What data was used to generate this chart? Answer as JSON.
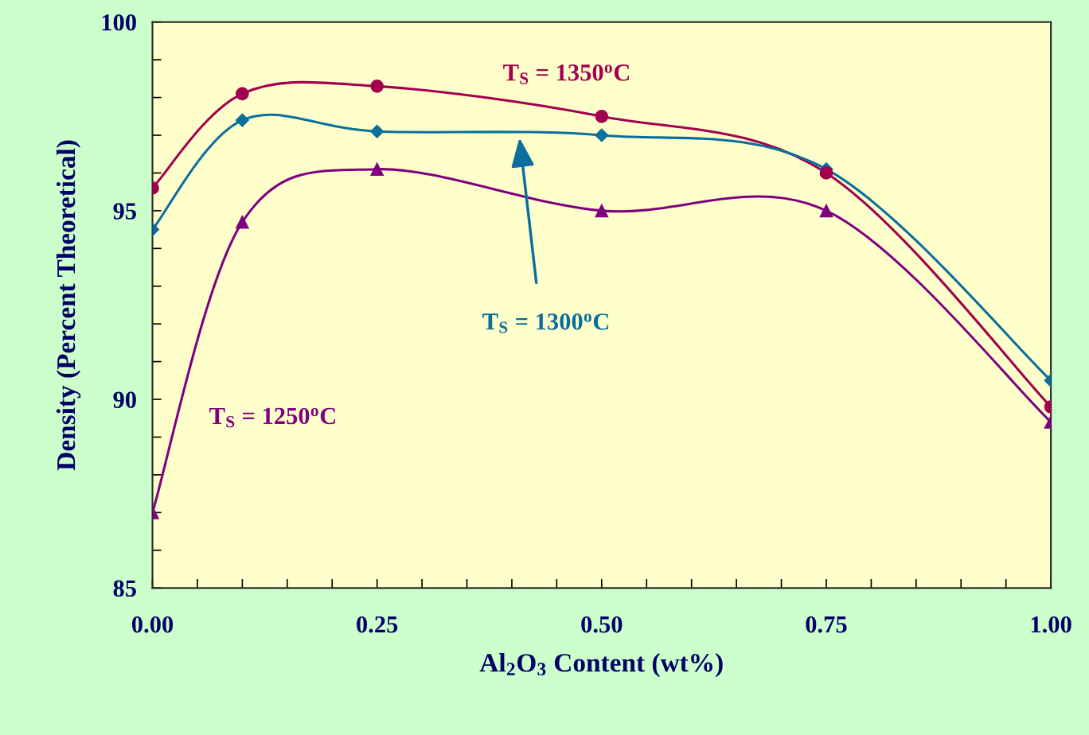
{
  "chart_data": {
    "type": "line",
    "xlabel": "Al$_{2}$O$_{3}$ Content (wt%)",
    "ylabel": "Density (Percent Theoretical)",
    "x": [
      0,
      0.1,
      0.25,
      0.5,
      0.75,
      1.0
    ],
    "series": [
      {
        "name": "T$_{S}$ = 1350$^{o}$C",
        "color": "#a3004f",
        "marker": "circle",
        "values": [
          95.6,
          98.1,
          98.3,
          97.5,
          96.0,
          89.8
        ]
      },
      {
        "name": "T$_{S}$ = 1300$^{o}$C",
        "color": "#0a6f9c",
        "marker": "diamond",
        "values": [
          94.5,
          97.4,
          97.1,
          97.0,
          96.1,
          90.5
        ]
      },
      {
        "name": "T$_{S}$ = 1250$^{o}$C",
        "color": "#800080",
        "marker": "triangle",
        "values": [
          87.0,
          94.7,
          96.1,
          95.0,
          95.0,
          89.4
        ]
      }
    ],
    "xlim": [
      0,
      1.0
    ],
    "ylim": [
      85,
      100
    ],
    "xticks": [
      {
        "value": 0,
        "label": "0.00"
      },
      {
        "value": 0.05,
        "label": null
      },
      {
        "value": 0.1,
        "label": null
      },
      {
        "value": 0.15,
        "label": null
      },
      {
        "value": 0.2,
        "label": null
      },
      {
        "value": 0.25,
        "label": "0.25"
      },
      {
        "value": 0.3,
        "label": null
      },
      {
        "value": 0.35,
        "label": null
      },
      {
        "value": 0.4,
        "label": null
      },
      {
        "value": 0.45,
        "label": null
      },
      {
        "value": 0.5,
        "label": "0.50"
      },
      {
        "value": 0.55,
        "label": null
      },
      {
        "value": 0.6,
        "label": null
      },
      {
        "value": 0.65,
        "label": null
      },
      {
        "value": 0.7,
        "label": null
      },
      {
        "value": 0.75,
        "label": "0.75"
      },
      {
        "value": 0.8,
        "label": null
      },
      {
        "value": 0.85,
        "label": null
      },
      {
        "value": 0.9,
        "label": null
      },
      {
        "value": 0.95,
        "label": null
      },
      {
        "value": 1.0,
        "label": "1.00"
      }
    ],
    "yticks": [
      85,
      {
        "value": 86,
        "label": null
      },
      {
        "value": 87,
        "label": null
      },
      {
        "value": 88,
        "label": null
      },
      {
        "value": 89,
        "label": null
      },
      90,
      {
        "value": 91,
        "label": null
      },
      {
        "value": 92,
        "label": null
      },
      {
        "value": 93,
        "label": null
      },
      {
        "value": 94,
        "label": null
      },
      95,
      {
        "value": 96,
        "label": null
      },
      {
        "value": 97,
        "label": null
      },
      {
        "value": 98,
        "label": null
      },
      {
        "value": 99,
        "label": null
      },
      100
    ],
    "grid": false,
    "legend": false,
    "line_style": "solid"
  }
}
